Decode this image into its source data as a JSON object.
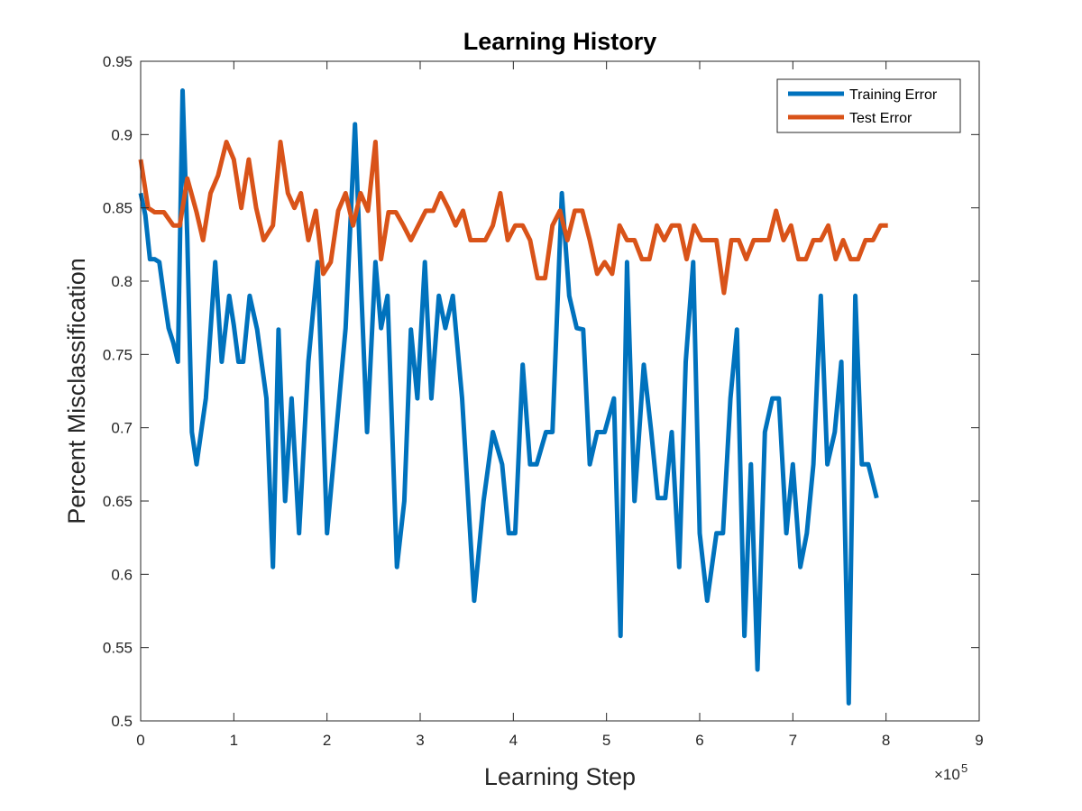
{
  "chart_data": {
    "type": "line",
    "title": "Learning History",
    "xlabel": "Learning Step",
    "ylabel": "Percent Misclassification",
    "x_exponent_label": "×10",
    "x_exponent_power": "5",
    "xlim": [
      0,
      900000
    ],
    "ylim": [
      0.5,
      0.95
    ],
    "x_tick_values": [
      0,
      100000,
      200000,
      300000,
      400000,
      500000,
      600000,
      700000,
      800000,
      900000
    ],
    "x_tick_labels": [
      "0",
      "1",
      "2",
      "3",
      "4",
      "5",
      "6",
      "7",
      "8",
      "9"
    ],
    "y_tick_values": [
      0.5,
      0.55,
      0.6,
      0.65,
      0.7,
      0.75,
      0.8,
      0.85,
      0.9,
      0.95
    ],
    "y_tick_labels": [
      "0.5",
      "0.55",
      "0.6",
      "0.65",
      "0.7",
      "0.75",
      "0.8",
      "0.85",
      "0.9",
      "0.95"
    ],
    "grid": false,
    "legend_position": "top-right",
    "series": [
      {
        "name": "Training Error",
        "color": "#0072BD",
        "points": [
          [
            0,
            0.86
          ],
          [
            5000,
            0.845
          ],
          [
            10000,
            0.815
          ],
          [
            15000,
            0.815
          ],
          [
            20000,
            0.813
          ],
          [
            25000,
            0.79
          ],
          [
            30000,
            0.768
          ],
          [
            35000,
            0.758
          ],
          [
            40000,
            0.745
          ],
          [
            45000,
            0.93
          ],
          [
            50000,
            0.83
          ],
          [
            55000,
            0.697
          ],
          [
            60000,
            0.675
          ],
          [
            70000,
            0.72
          ],
          [
            80000,
            0.813
          ],
          [
            87000,
            0.745
          ],
          [
            95000,
            0.79
          ],
          [
            100000,
            0.77
          ],
          [
            105000,
            0.745
          ],
          [
            110000,
            0.745
          ],
          [
            117000,
            0.79
          ],
          [
            125000,
            0.767
          ],
          [
            135000,
            0.72
          ],
          [
            142000,
            0.605
          ],
          [
            148000,
            0.767
          ],
          [
            155000,
            0.65
          ],
          [
            162000,
            0.72
          ],
          [
            170000,
            0.628
          ],
          [
            180000,
            0.745
          ],
          [
            190000,
            0.813
          ],
          [
            200000,
            0.628
          ],
          [
            210000,
            0.698
          ],
          [
            220000,
            0.768
          ],
          [
            230000,
            0.907
          ],
          [
            237000,
            0.79
          ],
          [
            243000,
            0.697
          ],
          [
            252000,
            0.813
          ],
          [
            258000,
            0.768
          ],
          [
            265000,
            0.79
          ],
          [
            275000,
            0.605
          ],
          [
            283000,
            0.65
          ],
          [
            290000,
            0.767
          ],
          [
            297000,
            0.72
          ],
          [
            305000,
            0.813
          ],
          [
            312000,
            0.72
          ],
          [
            320000,
            0.79
          ],
          [
            327000,
            0.768
          ],
          [
            335000,
            0.79
          ],
          [
            345000,
            0.72
          ],
          [
            358000,
            0.582
          ],
          [
            368000,
            0.65
          ],
          [
            378000,
            0.697
          ],
          [
            388000,
            0.675
          ],
          [
            395000,
            0.628
          ],
          [
            402000,
            0.628
          ],
          [
            410000,
            0.743
          ],
          [
            418000,
            0.675
          ],
          [
            425000,
            0.675
          ],
          [
            435000,
            0.697
          ],
          [
            442000,
            0.697
          ],
          [
            452000,
            0.86
          ],
          [
            460000,
            0.79
          ],
          [
            468000,
            0.768
          ],
          [
            475000,
            0.767
          ],
          [
            482000,
            0.675
          ],
          [
            490000,
            0.697
          ],
          [
            498000,
            0.697
          ],
          [
            508000,
            0.72
          ],
          [
            515000,
            0.558
          ],
          [
            522000,
            0.813
          ],
          [
            530000,
            0.65
          ],
          [
            540000,
            0.743
          ],
          [
            548000,
            0.697
          ],
          [
            555000,
            0.652
          ],
          [
            563000,
            0.652
          ],
          [
            570000,
            0.697
          ],
          [
            578000,
            0.605
          ],
          [
            585000,
            0.745
          ],
          [
            593000,
            0.813
          ],
          [
            600000,
            0.628
          ],
          [
            608000,
            0.582
          ],
          [
            618000,
            0.628
          ],
          [
            625000,
            0.628
          ],
          [
            633000,
            0.72
          ],
          [
            640000,
            0.767
          ],
          [
            648000,
            0.558
          ],
          [
            655000,
            0.675
          ],
          [
            662000,
            0.535
          ],
          [
            670000,
            0.697
          ],
          [
            678000,
            0.72
          ],
          [
            685000,
            0.72
          ],
          [
            693000,
            0.628
          ],
          [
            700000,
            0.675
          ],
          [
            708000,
            0.605
          ],
          [
            715000,
            0.628
          ],
          [
            722000,
            0.675
          ],
          [
            730000,
            0.79
          ],
          [
            737000,
            0.675
          ],
          [
            745000,
            0.697
          ],
          [
            752000,
            0.745
          ],
          [
            760000,
            0.512
          ],
          [
            767000,
            0.79
          ],
          [
            774000,
            0.675
          ],
          [
            781000,
            0.675
          ],
          [
            790000,
            0.652
          ]
        ]
      },
      {
        "name": "Test Error",
        "color": "#D95319",
        "points": [
          [
            0,
            0.883
          ],
          [
            8000,
            0.85
          ],
          [
            15000,
            0.847
          ],
          [
            25000,
            0.847
          ],
          [
            35000,
            0.838
          ],
          [
            42000,
            0.838
          ],
          [
            50000,
            0.87
          ],
          [
            60000,
            0.847
          ],
          [
            67000,
            0.828
          ],
          [
            75000,
            0.86
          ],
          [
            83000,
            0.872
          ],
          [
            92000,
            0.895
          ],
          [
            100000,
            0.883
          ],
          [
            108000,
            0.85
          ],
          [
            116000,
            0.883
          ],
          [
            124000,
            0.85
          ],
          [
            132000,
            0.828
          ],
          [
            142000,
            0.838
          ],
          [
            150000,
            0.895
          ],
          [
            158000,
            0.86
          ],
          [
            165000,
            0.85
          ],
          [
            172000,
            0.86
          ],
          [
            180000,
            0.828
          ],
          [
            188000,
            0.848
          ],
          [
            196000,
            0.805
          ],
          [
            204000,
            0.813
          ],
          [
            212000,
            0.848
          ],
          [
            220000,
            0.86
          ],
          [
            228000,
            0.838
          ],
          [
            236000,
            0.86
          ],
          [
            244000,
            0.848
          ],
          [
            252000,
            0.895
          ],
          [
            258000,
            0.815
          ],
          [
            266000,
            0.847
          ],
          [
            274000,
            0.847
          ],
          [
            282000,
            0.838
          ],
          [
            290000,
            0.828
          ],
          [
            298000,
            0.838
          ],
          [
            306000,
            0.848
          ],
          [
            314000,
            0.848
          ],
          [
            322000,
            0.86
          ],
          [
            330000,
            0.85
          ],
          [
            338000,
            0.838
          ],
          [
            346000,
            0.848
          ],
          [
            354000,
            0.828
          ],
          [
            362000,
            0.828
          ],
          [
            370000,
            0.828
          ],
          [
            378000,
            0.838
          ],
          [
            386000,
            0.86
          ],
          [
            394000,
            0.828
          ],
          [
            402000,
            0.838
          ],
          [
            410000,
            0.838
          ],
          [
            418000,
            0.828
          ],
          [
            426000,
            0.802
          ],
          [
            434000,
            0.802
          ],
          [
            442000,
            0.838
          ],
          [
            450000,
            0.848
          ],
          [
            458000,
            0.828
          ],
          [
            466000,
            0.848
          ],
          [
            474000,
            0.848
          ],
          [
            482000,
            0.828
          ],
          [
            490000,
            0.805
          ],
          [
            498000,
            0.813
          ],
          [
            506000,
            0.805
          ],
          [
            514000,
            0.838
          ],
          [
            522000,
            0.828
          ],
          [
            530000,
            0.828
          ],
          [
            538000,
            0.815
          ],
          [
            546000,
            0.815
          ],
          [
            554000,
            0.838
          ],
          [
            562000,
            0.828
          ],
          [
            570000,
            0.838
          ],
          [
            578000,
            0.838
          ],
          [
            586000,
            0.815
          ],
          [
            594000,
            0.838
          ],
          [
            602000,
            0.828
          ],
          [
            610000,
            0.828
          ],
          [
            618000,
            0.828
          ],
          [
            626000,
            0.792
          ],
          [
            634000,
            0.828
          ],
          [
            642000,
            0.828
          ],
          [
            650000,
            0.815
          ],
          [
            658000,
            0.828
          ],
          [
            666000,
            0.828
          ],
          [
            674000,
            0.828
          ],
          [
            682000,
            0.848
          ],
          [
            690000,
            0.828
          ],
          [
            698000,
            0.838
          ],
          [
            706000,
            0.815
          ],
          [
            714000,
            0.815
          ],
          [
            722000,
            0.828
          ],
          [
            730000,
            0.828
          ],
          [
            738000,
            0.838
          ],
          [
            746000,
            0.815
          ],
          [
            754000,
            0.828
          ],
          [
            762000,
            0.815
          ],
          [
            770000,
            0.815
          ],
          [
            778000,
            0.828
          ],
          [
            786000,
            0.828
          ],
          [
            794000,
            0.838
          ],
          [
            802000,
            0.838
          ]
        ]
      }
    ]
  }
}
